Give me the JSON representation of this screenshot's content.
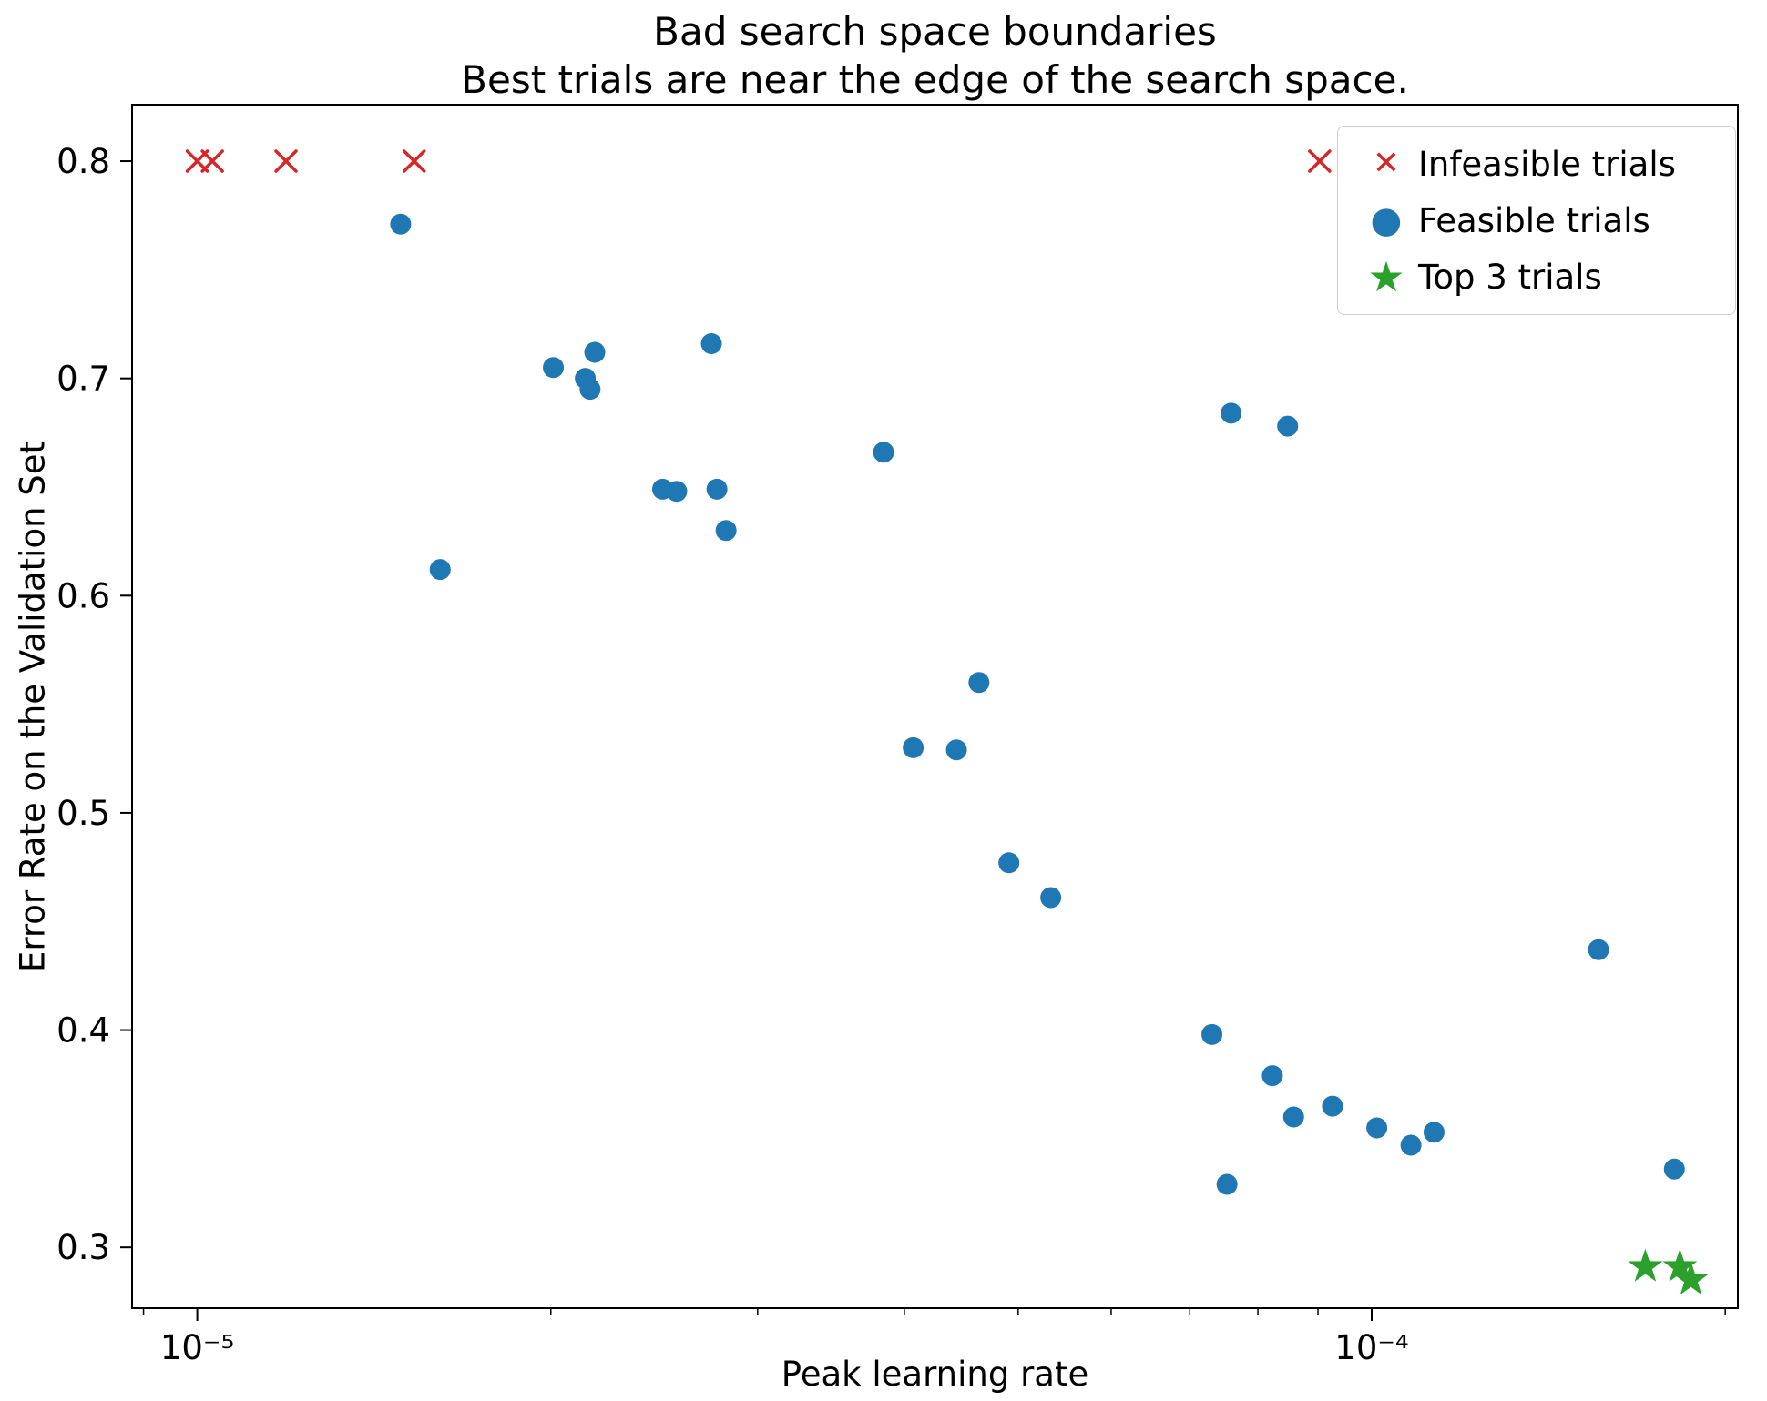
{
  "chart_data": {
    "type": "scatter",
    "title": "Bad search space boundaries\nBest trials are near the edge of the search space.",
    "title_line1": "Bad search space boundaries",
    "title_line2": "Best trials are near the edge of the search space.",
    "xlabel": "Peak learning rate",
    "ylabel": "Error Rate on the Validation Set",
    "x_scale": "log",
    "x_range": [
      8.8e-06,
      0.000205
    ],
    "y_range": [
      0.272,
      0.826
    ],
    "x_ticks": [
      {
        "value": 1e-05,
        "label": "10⁻⁵"
      },
      {
        "value": 0.0001,
        "label": "10⁻⁴"
      }
    ],
    "x_minor_ticks": [
      9e-06,
      2e-05,
      3e-05,
      4e-05,
      5e-05,
      6e-05,
      7e-05,
      8e-05,
      9e-05,
      0.0002
    ],
    "y_ticks": [
      0.3,
      0.4,
      0.5,
      0.6,
      0.7,
      0.8
    ],
    "grid": false,
    "legend_position": "upper right",
    "colors": {
      "infeasible": "#d62728",
      "feasible": "#1f77b4",
      "top3": "#2ca02c"
    },
    "series": [
      {
        "name": "Infeasible trials",
        "marker": "x",
        "color": "#d62728",
        "points": [
          [
            1e-05,
            0.8
          ],
          [
            1.03e-05,
            0.8
          ],
          [
            1.19e-05,
            0.8
          ],
          [
            1.53e-05,
            0.8
          ],
          [
            9.03e-05,
            0.8
          ]
        ]
      },
      {
        "name": "Feasible trials",
        "marker": "circle",
        "color": "#1f77b4",
        "points": [
          [
            1.49e-05,
            0.771
          ],
          [
            1.61e-05,
            0.612
          ],
          [
            2.01e-05,
            0.705
          ],
          [
            2.18e-05,
            0.712
          ],
          [
            2.14e-05,
            0.7
          ],
          [
            2.16e-05,
            0.695
          ],
          [
            2.74e-05,
            0.716
          ],
          [
            2.49e-05,
            0.649
          ],
          [
            2.56e-05,
            0.648
          ],
          [
            2.77e-05,
            0.649
          ],
          [
            2.82e-05,
            0.63
          ],
          [
            3.84e-05,
            0.666
          ],
          [
            4.63e-05,
            0.56
          ],
          [
            4.07e-05,
            0.53
          ],
          [
            4.43e-05,
            0.529
          ],
          [
            4.91e-05,
            0.477
          ],
          [
            5.33e-05,
            0.461
          ],
          [
            7.59e-05,
            0.684
          ],
          [
            8.48e-05,
            0.678
          ],
          [
            7.31e-05,
            0.398
          ],
          [
            8.23e-05,
            0.379
          ],
          [
            8.58e-05,
            0.36
          ],
          [
            9.26e-05,
            0.365
          ],
          [
            0.000101,
            0.355
          ],
          [
            0.000108,
            0.347
          ],
          [
            0.000113,
            0.353
          ],
          [
            7.53e-05,
            0.329
          ],
          [
            0.000156,
            0.437
          ],
          [
            0.000181,
            0.336
          ]
        ]
      },
      {
        "name": "Top 3 trials",
        "marker": "star",
        "color": "#2ca02c",
        "points": [
          [
            0.000171,
            0.291
          ],
          [
            0.000183,
            0.291
          ],
          [
            0.000187,
            0.285
          ]
        ]
      }
    ]
  }
}
